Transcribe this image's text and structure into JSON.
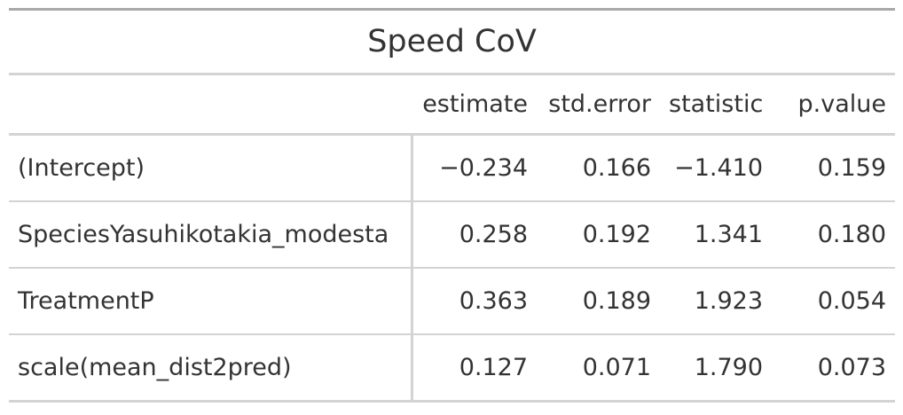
{
  "table": {
    "title": "Speed CoV",
    "columns": [
      "",
      "estimate",
      "std.error",
      "statistic",
      "p.value"
    ],
    "rows": [
      {
        "term": "(Intercept)",
        "estimate": "−0.234",
        "std_error": "0.166",
        "statistic": "−1.410",
        "p_value": "0.159"
      },
      {
        "term": "SpeciesYasuhikotakia_modesta",
        "estimate": "0.258",
        "std_error": "0.192",
        "statistic": "1.341",
        "p_value": "0.180"
      },
      {
        "term": "TreatmentP",
        "estimate": "0.363",
        "std_error": "0.189",
        "statistic": "1.923",
        "p_value": "0.054"
      },
      {
        "term": "scale(mean_dist2pred)",
        "estimate": "0.127",
        "std_error": "0.071",
        "statistic": "1.790",
        "p_value": "0.073"
      }
    ]
  },
  "colors": {
    "text": "#333333",
    "top_rule": "#a8a8a8",
    "rule": "#d3d3d3"
  }
}
